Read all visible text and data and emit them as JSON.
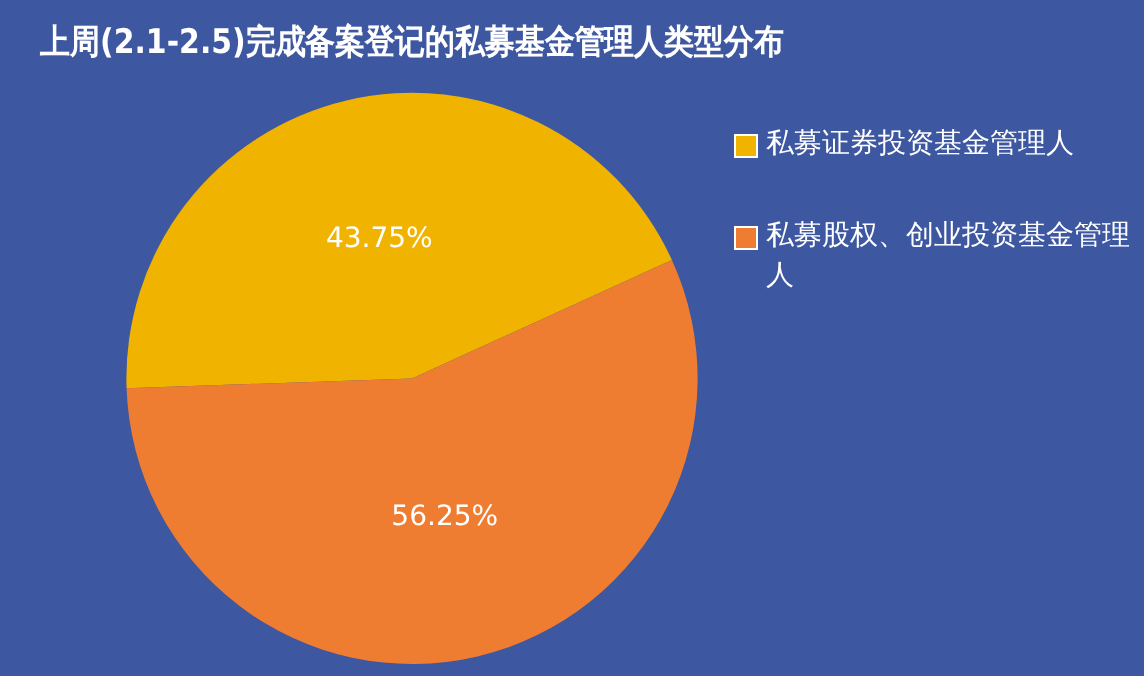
{
  "chart_data": {
    "type": "pie",
    "title": "上周(2.1-2.5)完成备案登记的私募基金管理人类型分布",
    "categories": [
      "私募证券投资基金管理人",
      "私募股权、创业投资基金管理人"
    ],
    "values": [
      43.75,
      56.25
    ],
    "colors": [
      "#f0b400",
      "#ee7d31"
    ],
    "value_labels": [
      "43.75%",
      "56.25%"
    ],
    "legend": "right"
  }
}
